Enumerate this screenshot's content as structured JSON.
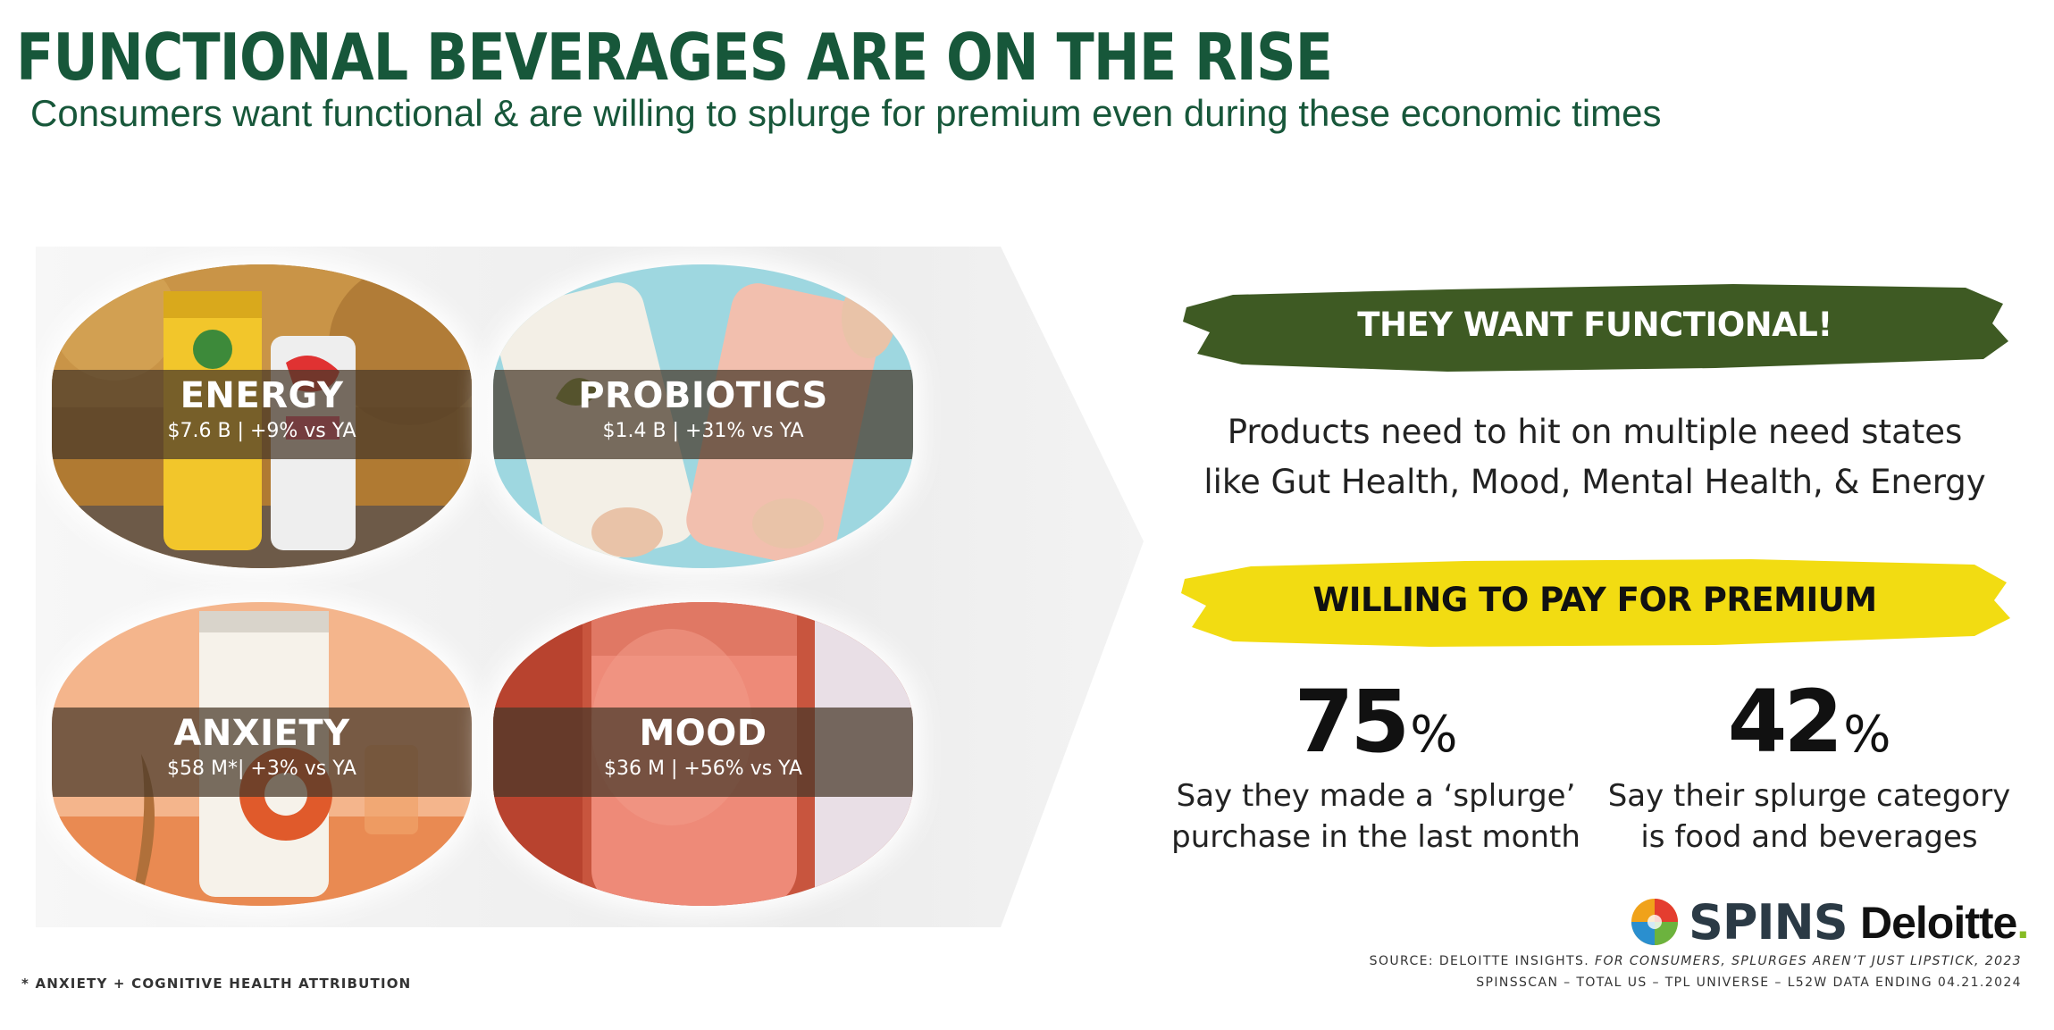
{
  "title": "FUNCTIONAL BEVERAGES ARE ON THE RISE",
  "subtitle": "Consumers want functional & are willing to splurge for premium even during these economic times",
  "categories": [
    {
      "name": "ENERGY",
      "stat": "$7.6 B | +9% vs YA"
    },
    {
      "name": "PROBIOTICS",
      "stat": "$1.4 B | +31% vs YA"
    },
    {
      "name": "ANXIETY",
      "stat": "$58 M*| +3% vs YA"
    },
    {
      "name": "MOOD",
      "stat": "$36 M | +56% vs YA"
    }
  ],
  "functional_banner": "THEY WANT FUNCTIONAL!",
  "need_states": [
    "Products need to hit on multiple need states",
    "like Gut Health, Mood, Mental Health, & Energy"
  ],
  "premium_banner": "WILLING TO PAY FOR PREMIUM",
  "stats": [
    {
      "value": "75",
      "unit": "%",
      "caption_line1": "Say they made a ‘splurge’",
      "caption_line2": "purchase in the last month"
    },
    {
      "value": "42",
      "unit": "%",
      "caption_line1": "Say their splurge category",
      "caption_line2": "is food and beverages"
    }
  ],
  "logos": {
    "spins": "SPINS",
    "deloitte": "Deloitte",
    "deloitte_dot": "."
  },
  "source": {
    "line1_prefix": "SOURCE: DELOITTE INSIGHTS.",
    "line1_italic": "FOR CONSUMERS, SPLURGES AREN’T JUST LIPSTICK, 2023",
    "line2": "SPINSSCAN – TOTAL US – TPL UNIVERSE – L52W DATA ENDING 04.21.2024"
  },
  "footnote": "* ANXIETY + COGNITIVE HEALTH ATTRIBUTION",
  "colors": {
    "brand_green": "#17573a",
    "functional_band": "#3e5a23",
    "premium_band": "#f2dc12"
  }
}
